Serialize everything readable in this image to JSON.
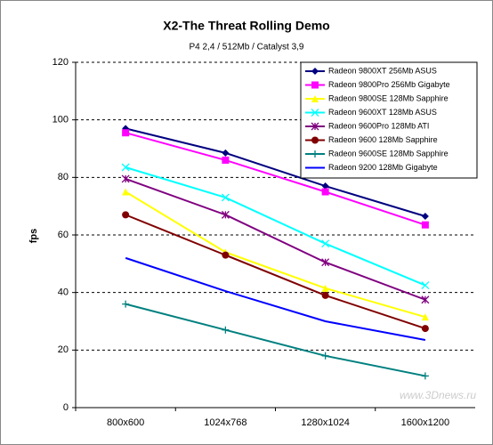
{
  "chart_data": {
    "type": "line",
    "title": "X2-The Threat Rolling Demo",
    "subtitle": "P4 2,4 / 512Mb / Catalyst 3,9",
    "y_label": "fps",
    "watermark": "www.3Dnews.ru",
    "categories": [
      "800x600",
      "1024x768",
      "1280x1024",
      "1600x1200"
    ],
    "ylim": [
      0,
      120
    ],
    "yticks": [
      0,
      20,
      40,
      60,
      80,
      100,
      120
    ],
    "grid": true,
    "legend": "top-right",
    "series": [
      {
        "name": "Radeon 9800XT 256Mb ASUS",
        "color": "#000080",
        "marker": "diamond",
        "values": [
          97,
          88.5,
          77,
          66.5
        ]
      },
      {
        "name": "Radeon 9800Pro 256Mb Gigabyte",
        "color": "#ff00ff",
        "marker": "square",
        "values": [
          95.5,
          86,
          75,
          63.5
        ]
      },
      {
        "name": "Radeon 9800SE 128Mb Sapphire",
        "color": "#ffff00",
        "marker": "triangle",
        "values": [
          75,
          54,
          41.5,
          31.5
        ]
      },
      {
        "name": "Radeon 9600XT 128Mb ASUS",
        "color": "#00ffff",
        "marker": "x",
        "values": [
          83.5,
          73,
          57,
          42.5
        ]
      },
      {
        "name": "Radeon 9600Pro 128Mb ATI",
        "color": "#800080",
        "marker": "star",
        "values": [
          79.5,
          67,
          50.5,
          37.5
        ]
      },
      {
        "name": "Radeon 9600 128Mb Sapphire",
        "color": "#800000",
        "marker": "circle",
        "values": [
          67,
          53,
          39,
          27.5
        ]
      },
      {
        "name": "Radeon 9600SE 128Mb Sapphire",
        "color": "#008080",
        "marker": "plus",
        "values": [
          36,
          27,
          18,
          11
        ]
      },
      {
        "name": "Radeon 9200 128Mb Gigabyte",
        "color": "#0000ff",
        "marker": "none",
        "values": [
          52,
          40.5,
          30,
          23.5
        ]
      }
    ]
  }
}
